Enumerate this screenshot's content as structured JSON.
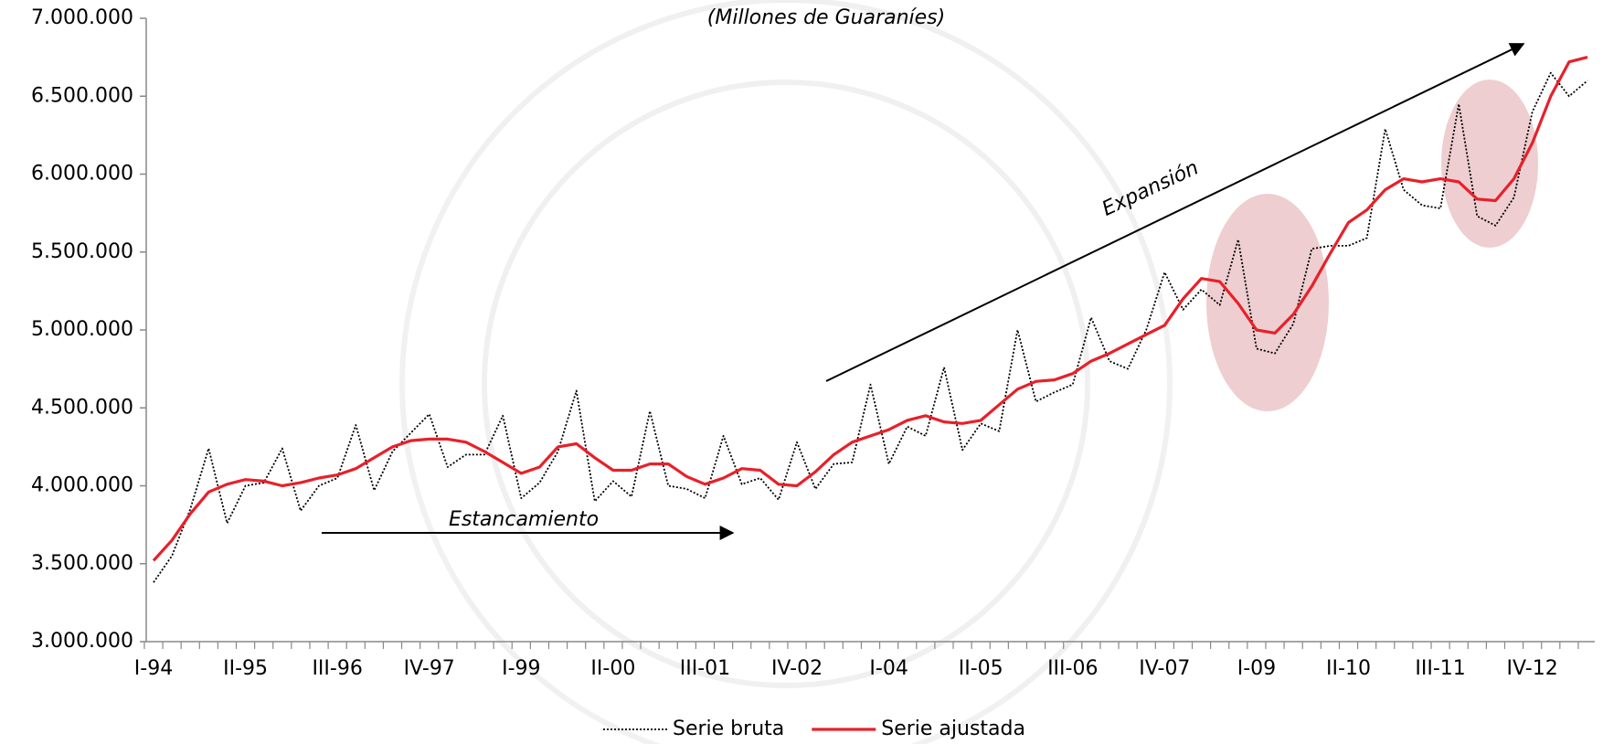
{
  "chart_data": {
    "type": "line",
    "subtitle": "(Millones de Guaraníes)",
    "annotations": [
      "Estancamiento",
      "Expansión"
    ],
    "categories": [
      "I-94",
      null,
      null,
      null,
      null,
      "II-95",
      null,
      null,
      null,
      null,
      "III-96",
      null,
      null,
      null,
      null,
      "IV-97",
      null,
      null,
      null,
      null,
      "I-99",
      null,
      null,
      null,
      null,
      "II-00",
      null,
      null,
      null,
      null,
      "III-01",
      null,
      null,
      null,
      null,
      "IV-02",
      null,
      null,
      null,
      null,
      "I-04",
      null,
      null,
      null,
      null,
      "II-05",
      null,
      null,
      null,
      null,
      "III-06",
      null,
      null,
      null,
      null,
      "IV-07",
      null,
      null,
      null,
      null,
      "I-09",
      null,
      null,
      null,
      null,
      "II-10",
      null,
      null,
      null,
      null,
      "III-11",
      null,
      null,
      null,
      null,
      "IV-12",
      null,
      null,
      null
    ],
    "series": [
      {
        "name": "Serie bruta",
        "color": "#000000",
        "dash": true,
        "values": [
          3380000,
          3550000,
          3850000,
          4240000,
          3760000,
          4000000,
          4020000,
          4240000,
          3840000,
          4000000,
          4050000,
          4390000,
          3970000,
          4220000,
          4340000,
          4460000,
          4120000,
          4200000,
          4200000,
          4450000,
          3920000,
          4020000,
          4220000,
          4610000,
          3900000,
          4030000,
          3930000,
          4480000,
          4000000,
          3980000,
          3920000,
          4320000,
          4010000,
          4050000,
          3910000,
          4280000,
          3980000,
          4140000,
          4150000,
          4650000,
          4140000,
          4380000,
          4320000,
          4760000,
          4230000,
          4400000,
          4350000,
          5000000,
          4540000,
          4600000,
          4650000,
          5080000,
          4800000,
          4750000,
          5000000,
          5370000,
          5130000,
          5260000,
          5160000,
          5580000,
          4880000,
          4850000,
          5040000,
          5520000,
          5540000,
          5540000,
          5590000,
          6290000,
          5900000,
          5800000,
          5780000,
          6450000,
          5730000,
          5670000,
          5850000,
          6400000,
          6650000,
          6500000,
          6600000
        ]
      },
      {
        "name": "Serie ajustada",
        "color": "#e8202a",
        "dash": false,
        "values": [
          3520000,
          3650000,
          3820000,
          3960000,
          4010000,
          4040000,
          4030000,
          4000000,
          4020000,
          4050000,
          4070000,
          4110000,
          4180000,
          4250000,
          4290000,
          4300000,
          4300000,
          4280000,
          4220000,
          4150000,
          4080000,
          4120000,
          4250000,
          4270000,
          4180000,
          4100000,
          4100000,
          4140000,
          4140000,
          4060000,
          4010000,
          4050000,
          4110000,
          4100000,
          4010000,
          4000000,
          4090000,
          4200000,
          4280000,
          4320000,
          4360000,
          4420000,
          4450000,
          4410000,
          4400000,
          4420000,
          4520000,
          4620000,
          4670000,
          4680000,
          4720000,
          4800000,
          4850000,
          4910000,
          4970000,
          5030000,
          5200000,
          5330000,
          5310000,
          5170000,
          5000000,
          4980000,
          5100000,
          5280000,
          5490000,
          5690000,
          5770000,
          5900000,
          5970000,
          5950000,
          5970000,
          5950000,
          5840000,
          5830000,
          5970000,
          6200000,
          6500000,
          6720000,
          6750000
        ]
      }
    ],
    "ylim": [
      3000000,
      7000000
    ],
    "yticks": [
      {
        "value": 3000000,
        "label": "3.000.000"
      },
      {
        "value": 3500000,
        "label": "3.500.000"
      },
      {
        "value": 4000000,
        "label": "4.000.000"
      },
      {
        "value": 4500000,
        "label": "4.500.000"
      },
      {
        "value": 5000000,
        "label": "5.000.000"
      },
      {
        "value": 5500000,
        "label": "5.500.000"
      },
      {
        "value": 6000000,
        "label": "6.000.000"
      },
      {
        "value": 6500000,
        "label": "6.500.000"
      },
      {
        "value": 7000000,
        "label": "7.000.000"
      }
    ],
    "grid": false
  }
}
